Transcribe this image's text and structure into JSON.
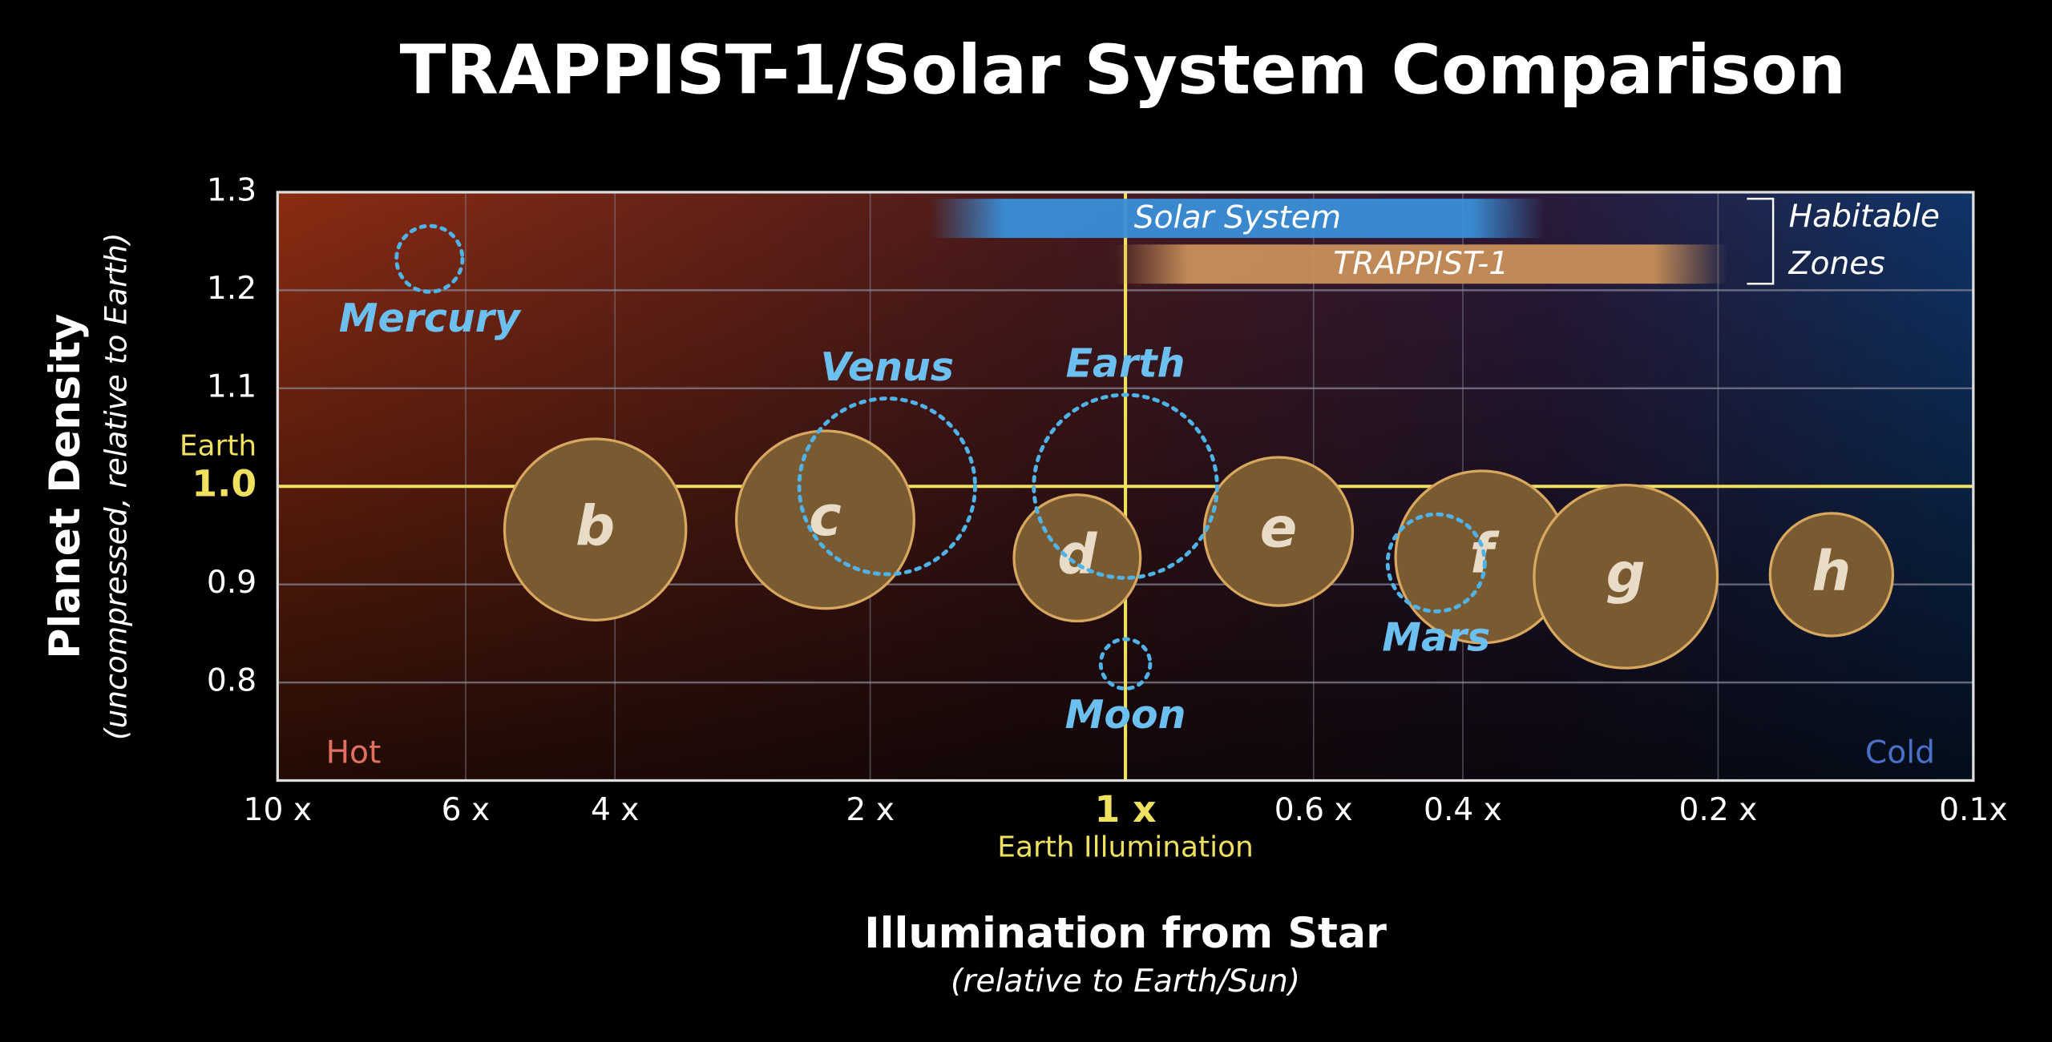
{
  "chart_data": {
    "type": "bubble",
    "title": "TRAPPIST-1/Solar System Comparison",
    "x_label": "Illumination from Star",
    "x_sublabel": "(relative to Earth/Sun)",
    "y_label": "Planet Density",
    "y_sublabel": "(uncompressed, relative to Earth)",
    "x_log": true,
    "xlim": [
      10,
      0.1
    ],
    "xticks": [
      {
        "value": 10,
        "label": "10 x"
      },
      {
        "value": 6,
        "label": "6 x"
      },
      {
        "value": 4,
        "label": "4 x"
      },
      {
        "value": 2,
        "label": "2 x"
      },
      {
        "value": 1,
        "label": "1 x"
      },
      {
        "value": 0.6,
        "label": "0.6 x"
      },
      {
        "value": 0.4,
        "label": "0.4 x"
      },
      {
        "value": 0.2,
        "label": "0.2 x"
      },
      {
        "value": 0.1,
        "label": "0.1x"
      }
    ],
    "ylim": [
      0.7,
      1.3
    ],
    "yticks": [
      0.8,
      0.9,
      {
        "value": 1,
        "label": "1.0"
      },
      1.1,
      1.2,
      1.3
    ],
    "grid": true,
    "reference_lines": {
      "x": 1,
      "y": 1,
      "x_label": "Earth Illumination",
      "y_label": "Earth",
      "color": "#f0e060"
    },
    "annotations": {
      "hot": "Hot",
      "cold": "Cold"
    },
    "habitable_zones": {
      "label": [
        "Habitable",
        "Zones"
      ],
      "bands": [
        {
          "name": "Solar System",
          "range": [
            1.7,
            0.32
          ],
          "color": "#3a8fd8"
        },
        {
          "name": "TRAPPIST-1",
          "range": [
            1.03,
            0.195
          ],
          "color": "#c8905a"
        }
      ]
    },
    "series": [
      {
        "name": "TRAPPIST-1",
        "color": "#7a5a30",
        "labels": [
          "b",
          "c",
          "d",
          "e",
          "f",
          "g",
          "h"
        ],
        "x": [
          4.22,
          2.26,
          1.14,
          0.66,
          0.38,
          0.257,
          0.147
        ],
        "values": [
          0.956,
          0.966,
          0.927,
          0.954,
          0.928,
          0.908,
          0.91
        ],
        "sizes": [
          0.99,
          0.97,
          0.69,
          0.81,
          0.94,
          1.0,
          0.67
        ]
      },
      {
        "name": "Solar System",
        "color": "#4fb3e8",
        "labels": [
          "Mercury",
          "Venus",
          "Earth",
          "Mars",
          "Moon"
        ],
        "x": [
          6.62,
          1.91,
          1,
          0.43,
          1
        ],
        "values": [
          1.232,
          1.0,
          1.0,
          0.922,
          0.819
        ],
        "sizes": [
          0.36,
          0.96,
          1.0,
          0.53,
          0.27
        ]
      }
    ]
  }
}
